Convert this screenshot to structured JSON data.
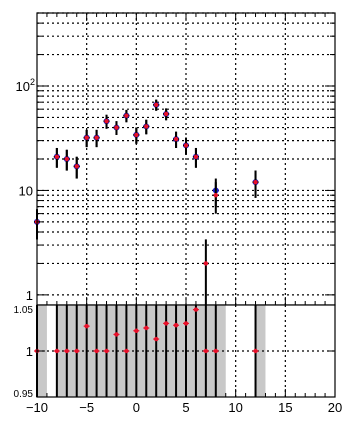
{
  "chart_data": [
    {
      "type": "scatter",
      "panel": "main",
      "y_scale": "log",
      "xlim": [
        -10,
        20
      ],
      "ylim": [
        0.8,
        500
      ],
      "grid": true,
      "title": "",
      "xlabel": "",
      "ylabel": "",
      "y_ticks": [
        {
          "value": 1,
          "label": "1"
        },
        {
          "value": 10,
          "label": "10"
        },
        {
          "value": 100,
          "base": "10",
          "exp": "2"
        }
      ],
      "series": [
        {
          "marker_color": "#1a1acc",
          "error_color": "#000000",
          "points": [
            {
              "x": -10,
              "y": 5,
              "err": 1.6
            },
            {
              "x": -8,
              "y": 21,
              "err": 4.5
            },
            {
              "x": -7,
              "y": 20,
              "err": 4.5
            },
            {
              "x": -6,
              "y": 17,
              "err": 4
            },
            {
              "x": -5,
              "y": 32,
              "err": 6
            },
            {
              "x": -4,
              "y": 32,
              "err": 6
            },
            {
              "x": -3,
              "y": 46,
              "err": 7
            },
            {
              "x": -2,
              "y": 40,
              "err": 6
            },
            {
              "x": -1,
              "y": 52,
              "err": 7
            },
            {
              "x": 0,
              "y": 34,
              "err": 6
            },
            {
              "x": 1,
              "y": 41,
              "err": 6.5
            },
            {
              "x": 2,
              "y": 66,
              "err": 8
            },
            {
              "x": 3,
              "y": 54,
              "err": 7
            },
            {
              "x": 4,
              "y": 31,
              "err": 5.5
            },
            {
              "x": 5,
              "y": 27,
              "err": 5
            },
            {
              "x": 6,
              "y": 21,
              "err": 4.5
            },
            {
              "x": 8,
              "y": 10,
              "err": 3
            },
            {
              "x": 12,
              "y": 12,
              "err": 3.5
            }
          ]
        },
        {
          "marker_color": "#e8102a",
          "error_color": "#000000",
          "points": [
            {
              "x": -10,
              "y": 5,
              "err": 1.6
            },
            {
              "x": -8,
              "y": 21,
              "err": 4.5
            },
            {
              "x": -7,
              "y": 20,
              "err": 4.5
            },
            {
              "x": -6,
              "y": 17,
              "err": 4
            },
            {
              "x": -5,
              "y": 32,
              "err": 6
            },
            {
              "x": -4,
              "y": 32,
              "err": 6
            },
            {
              "x": -3,
              "y": 46,
              "err": 7
            },
            {
              "x": -2,
              "y": 40,
              "err": 6
            },
            {
              "x": -1,
              "y": 52,
              "err": 7
            },
            {
              "x": 0,
              "y": 34,
              "err": 6
            },
            {
              "x": 1,
              "y": 41,
              "err": 6.5
            },
            {
              "x": 2,
              "y": 66,
              "err": 8
            },
            {
              "x": 3,
              "y": 54,
              "err": 7
            },
            {
              "x": 4,
              "y": 31,
              "err": 5.5
            },
            {
              "x": 5,
              "y": 27,
              "err": 5
            },
            {
              "x": 6,
              "y": 21,
              "err": 4.5
            },
            {
              "x": 7,
              "y": 2,
              "err": 1.4
            },
            {
              "x": 8,
              "y": 9,
              "err": 3
            },
            {
              "x": 12,
              "y": 12,
              "err": 3.5
            }
          ]
        }
      ]
    },
    {
      "type": "scatter",
      "panel": "ratio",
      "xlim": [
        -10,
        20
      ],
      "ylim": [
        0.95,
        1.05
      ],
      "grid": true,
      "title": "",
      "xlabel": "",
      "ylabel": "",
      "x_ticks": [
        -10,
        -5,
        0,
        5,
        10,
        15,
        20
      ],
      "y_ticks": [
        {
          "value": 0.95,
          "label": "0.95"
        },
        {
          "value": 1,
          "label": "1"
        },
        {
          "value": 1.05,
          "label": "1.05"
        }
      ],
      "uncertainty_band_color": "#c8c8c8",
      "uncertainty_bins": [
        {
          "x0": -10,
          "x1": -9
        },
        {
          "x0": -8,
          "x1": 9
        },
        {
          "x0": 12,
          "x1": 13
        }
      ],
      "points": [
        {
          "x": -10,
          "y": 1.0
        },
        {
          "x": -8,
          "y": 1.0
        },
        {
          "x": -7,
          "y": 1.0
        },
        {
          "x": -6,
          "y": 1.0
        },
        {
          "x": -5,
          "y": 1.027
        },
        {
          "x": -4,
          "y": 1.0
        },
        {
          "x": -3,
          "y": 1.0
        },
        {
          "x": -2,
          "y": 1.018
        },
        {
          "x": -1,
          "y": 1.0
        },
        {
          "x": 0,
          "y": 1.022
        },
        {
          "x": 1,
          "y": 1.025
        },
        {
          "x": 2,
          "y": 1.013
        },
        {
          "x": 3,
          "y": 1.03
        },
        {
          "x": 4,
          "y": 1.028
        },
        {
          "x": 5,
          "y": 1.03
        },
        {
          "x": 6,
          "y": 1.045
        },
        {
          "x": 7,
          "y": 1.0
        },
        {
          "x": 8,
          "y": 1.0
        },
        {
          "x": 12,
          "y": 1.0
        }
      ],
      "marker_color": "#e8102a"
    }
  ]
}
